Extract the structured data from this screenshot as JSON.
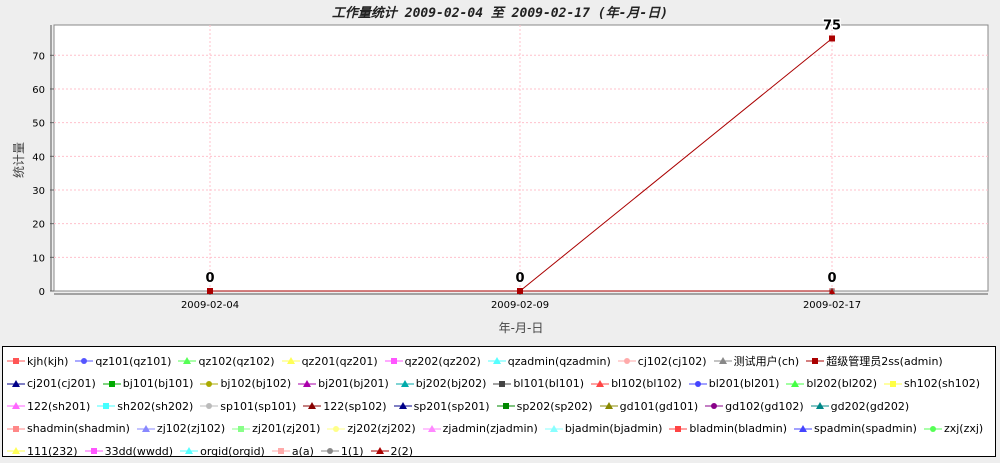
{
  "chart_data": {
    "type": "line",
    "title": "工作量统计 2009-02-04 至 2009-02-17 (年-月-日)",
    "xlabel": "年-月-日",
    "ylabel": "统计量",
    "categories": [
      "2009-02-04",
      "2009-02-09",
      "2009-02-17"
    ],
    "ylim": [
      0,
      79
    ],
    "yticks": [
      0,
      10,
      20,
      30,
      40,
      50,
      60,
      70
    ],
    "grid": true,
    "legend_position": "bottom",
    "series": [
      {
        "name": "kjh(kjh)",
        "color": "#ff5555",
        "marker": "square",
        "values": [
          0,
          0,
          0
        ]
      },
      {
        "name": "qz101(qz101)",
        "color": "#5555ff",
        "marker": "circle",
        "values": [
          0,
          0,
          0
        ]
      },
      {
        "name": "qz102(qz102)",
        "color": "#55ff55",
        "marker": "triangle-up",
        "values": [
          0,
          0,
          0
        ]
      },
      {
        "name": "qz201(qz201)",
        "color": "#ffff55",
        "marker": "diamond",
        "values": [
          0,
          0,
          0
        ]
      },
      {
        "name": "qz202(qz202)",
        "color": "#ff55ff",
        "marker": "rect",
        "values": [
          0,
          0,
          0
        ]
      },
      {
        "name": "qzadmin(qzadmin)",
        "color": "#55ffff",
        "marker": "triangle-down",
        "values": [
          0,
          0,
          0
        ]
      },
      {
        "name": "cj102(cj102)",
        "color": "#ffaaaa",
        "marker": "circle",
        "values": [
          0,
          0,
          0
        ]
      },
      {
        "name": "测试用户(ch)",
        "color": "#888888",
        "marker": "triangle-right",
        "values": [
          0,
          0,
          0
        ]
      },
      {
        "name": "超级管理员2ss(admin)",
        "color": "#aa0000",
        "marker": "square",
        "values": [
          0,
          0,
          75
        ]
      },
      {
        "name": "cj201(cj201)",
        "color": "#000088",
        "marker": "triangle-left",
        "values": [
          0,
          0,
          0
        ]
      },
      {
        "name": "bj101(bj101)",
        "color": "#00aa00",
        "marker": "square",
        "values": [
          0,
          0,
          0
        ]
      },
      {
        "name": "bj102(bj102)",
        "color": "#aaaa00",
        "marker": "circle",
        "values": [
          0,
          0,
          0
        ]
      },
      {
        "name": "bj201(bj201)",
        "color": "#aa00aa",
        "marker": "triangle-up",
        "values": [
          0,
          0,
          0
        ]
      },
      {
        "name": "bj202(bj202)",
        "color": "#00aaaa",
        "marker": "diamond",
        "values": [
          0,
          0,
          0
        ]
      },
      {
        "name": "bl101(bl101)",
        "color": "#444444",
        "marker": "rect",
        "values": [
          0,
          0,
          0
        ]
      },
      {
        "name": "bl102(bl102)",
        "color": "#ff4444",
        "marker": "triangle-down",
        "values": [
          0,
          0,
          0
        ]
      },
      {
        "name": "bl201(bl201)",
        "color": "#4444ff",
        "marker": "circle",
        "values": [
          0,
          0,
          0
        ]
      },
      {
        "name": "bl202(bl202)",
        "color": "#44ff44",
        "marker": "triangle-right",
        "values": [
          0,
          0,
          0
        ]
      },
      {
        "name": "sh102(sh102)",
        "color": "#ffff44",
        "marker": "square",
        "values": [
          0,
          0,
          0
        ]
      },
      {
        "name": "122(sh201)",
        "color": "#ff66ff",
        "marker": "triangle-left",
        "values": [
          0,
          0,
          0
        ]
      },
      {
        "name": "sh202(sh202)",
        "color": "#44ffff",
        "marker": "square",
        "values": [
          0,
          0,
          0
        ]
      },
      {
        "name": "sp101(sp101)",
        "color": "#bbbbbb",
        "marker": "circle",
        "values": [
          0,
          0,
          0
        ]
      },
      {
        "name": "122(sp102)",
        "color": "#880000",
        "marker": "triangle-up",
        "values": [
          0,
          0,
          0
        ]
      },
      {
        "name": "sp201(sp201)",
        "color": "#000088",
        "marker": "diamond",
        "values": [
          0,
          0,
          0
        ]
      },
      {
        "name": "sp202(sp202)",
        "color": "#008800",
        "marker": "rect",
        "values": [
          0,
          0,
          0
        ]
      },
      {
        "name": "gd101(gd101)",
        "color": "#888800",
        "marker": "triangle-down",
        "values": [
          0,
          0,
          0
        ]
      },
      {
        "name": "gd102(gd102)",
        "color": "#880088",
        "marker": "circle",
        "values": [
          0,
          0,
          0
        ]
      },
      {
        "name": "gd202(gd202)",
        "color": "#008888",
        "marker": "triangle-right",
        "values": [
          0,
          0,
          0
        ]
      },
      {
        "name": "shadmin(shadmin)",
        "color": "#ff8888",
        "marker": "square",
        "values": [
          0,
          0,
          0
        ]
      },
      {
        "name": "zj102(zj102)",
        "color": "#8888ff",
        "marker": "triangle-left",
        "values": [
          0,
          0,
          0
        ]
      },
      {
        "name": "zj201(zj201)",
        "color": "#88ff88",
        "marker": "square",
        "values": [
          0,
          0,
          0
        ]
      },
      {
        "name": "zj202(zj202)",
        "color": "#ffff88",
        "marker": "circle",
        "values": [
          0,
          0,
          0
        ]
      },
      {
        "name": "zjadmin(zjadmin)",
        "color": "#ff88ff",
        "marker": "triangle-up",
        "values": [
          0,
          0,
          0
        ]
      },
      {
        "name": "bjadmin(bjadmin)",
        "color": "#88ffff",
        "marker": "diamond",
        "values": [
          0,
          0,
          0
        ]
      },
      {
        "name": "bladmin(bladmin)",
        "color": "#ff4444",
        "marker": "rect",
        "values": [
          0,
          0,
          0
        ]
      },
      {
        "name": "spadmin(spadmin)",
        "color": "#4444ff",
        "marker": "triangle-down",
        "values": [
          0,
          0,
          0
        ]
      },
      {
        "name": "zxj(zxj)",
        "color": "#55ff55",
        "marker": "circle",
        "values": [
          0,
          0,
          0
        ]
      },
      {
        "name": "111(232)",
        "color": "#ffff55",
        "marker": "triangle-right",
        "values": [
          0,
          0,
          0
        ]
      },
      {
        "name": "33dd(wwdd)",
        "color": "#ff55ff",
        "marker": "square",
        "values": [
          0,
          0,
          0
        ]
      },
      {
        "name": "orgid(orgid)",
        "color": "#55ffff",
        "marker": "triangle-left",
        "values": [
          0,
          0,
          0
        ]
      },
      {
        "name": "a(a)",
        "color": "#ffaaaa",
        "marker": "square",
        "values": [
          0,
          0,
          0
        ]
      },
      {
        "name": "1(1)",
        "color": "#888888",
        "marker": "circle",
        "values": [
          0,
          0,
          0
        ]
      },
      {
        "name": "2(2)",
        "color": "#aa0000",
        "marker": "triangle-up",
        "values": [
          0,
          0,
          0
        ]
      }
    ],
    "data_labels": [
      {
        "category": "2009-02-04",
        "text": "0"
      },
      {
        "category": "2009-02-09",
        "text": "0"
      },
      {
        "category": "2009-02-17",
        "text": "0"
      },
      {
        "category": "2009-02-17",
        "series": "超级管理员2ss(admin)",
        "text": "75"
      }
    ]
  },
  "legend": {
    "rows": [
      [
        "kjh(kjh)",
        "qz101(qz101)",
        "qz102(qz102)",
        "qz201(qz201)",
        "qz202(qz202)",
        "qzadmin(qzadmin)",
        "cj102(cj102)",
        "测试用户(ch)",
        "超级管理员2ss(admin)"
      ],
      [
        "cj201(cj201)",
        "bj101(bj101)",
        "bj102(bj102)",
        "bj201(bj201)",
        "bj202(bj202)",
        "bl101(bl101)",
        "bl102(bl102)",
        "bl201(bl201)",
        "bl202(bl202)",
        "sh102(sh102)"
      ],
      [
        "122(sh201)",
        "sh202(sh202)",
        "sp101(sp101)",
        "122(sp102)",
        "sp201(sp201)",
        "sp202(sp202)",
        "gd101(gd101)",
        "gd102(gd102)",
        "gd202(gd202)"
      ],
      [
        "shadmin(shadmin)",
        "zj102(zj102)",
        "zj201(zj201)",
        "zj202(zj202)",
        "zjadmin(zjadmin)",
        "bjadmin(bjadmin)",
        "bladmin(bladmin)",
        "spadmin(spadmin)",
        "zxj(zxj)"
      ],
      [
        "111(232)",
        "33dd(wwdd)",
        "orgid(orgid)",
        "a(a)",
        "1(1)",
        "2(2)"
      ]
    ]
  }
}
